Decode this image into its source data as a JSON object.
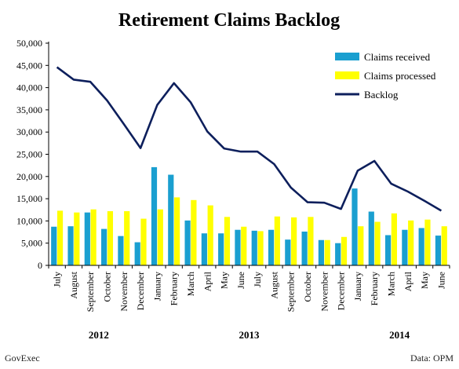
{
  "colors": {
    "received": "#1a9fd0",
    "processed": "#ffff00",
    "backlog": "#0d1f5c",
    "axis": "#000000"
  },
  "footer": {
    "left": "GovExec",
    "right": "Data: OPM"
  },
  "chart_data": {
    "type": "bar",
    "title": "Retirement Claims Backlog",
    "xlabel": "",
    "ylabel": "",
    "ylim": [
      0,
      50000
    ],
    "yticks": [
      "0",
      "5,000",
      "10,000",
      "15,000",
      "20,000",
      "25,000",
      "30,000",
      "35,000",
      "40,000",
      "45,000",
      "50,000"
    ],
    "grid": false,
    "legend_position": "top-right",
    "categories": [
      "July",
      "August",
      "September",
      "October",
      "November",
      "December",
      "January",
      "February",
      "March",
      "April",
      "May",
      "June",
      "July",
      "August",
      "September",
      "October",
      "November",
      "December",
      "January",
      "February",
      "March",
      "April",
      "May",
      "June"
    ],
    "year_labels": [
      {
        "label": "2012",
        "center_index": 2.5
      },
      {
        "label": "2013",
        "center_index": 11.5
      },
      {
        "label": "2014",
        "center_index": 20.5
      }
    ],
    "series": [
      {
        "name": "Claims received",
        "type": "bar",
        "values": [
          8700,
          8800,
          11900,
          8200,
          6600,
          5200,
          22100,
          20400,
          10100,
          7200,
          7200,
          8000,
          7800,
          8000,
          5800,
          7600,
          5700,
          5000,
          17300,
          12100,
          6800,
          8000,
          8400,
          6700
        ]
      },
      {
        "name": "Claims processed",
        "type": "bar",
        "values": [
          12300,
          11900,
          12600,
          12200,
          12200,
          10500,
          12600,
          15300,
          14700,
          13500,
          10900,
          8700,
          7700,
          11000,
          10800,
          10900,
          5700,
          6400,
          8800,
          9800,
          11700,
          10100,
          10300,
          8800
        ]
      },
      {
        "name": "Backlog",
        "type": "line",
        "values": [
          44600,
          41800,
          41300,
          37100,
          31800,
          26400,
          36100,
          41000,
          36700,
          30100,
          26300,
          25600,
          25600,
          22800,
          17500,
          14200,
          14100,
          12700,
          21300,
          23500,
          18400,
          16600,
          14500,
          12300
        ]
      }
    ]
  }
}
